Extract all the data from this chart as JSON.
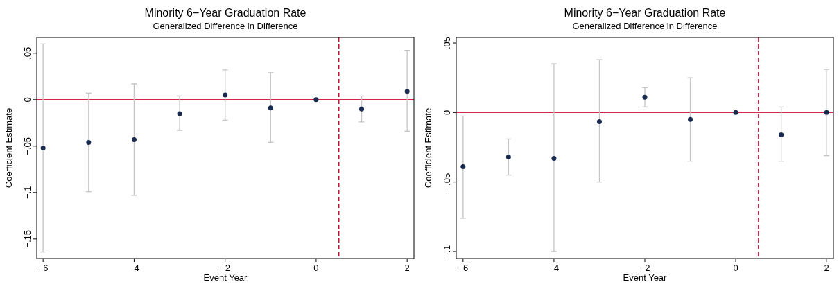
{
  "chart_data": [
    {
      "type": "scatter",
      "title": "Minority 6−Year Graduation Rate",
      "subtitle": "Generalized Difference in Difference",
      "xlabel": "Event Year",
      "ylabel": "Coefficient Estimate",
      "x": [
        -6,
        -5,
        -4,
        -3,
        -2,
        -1,
        0,
        1,
        2
      ],
      "series": [
        {
          "color": "#1a2a4f",
          "values": [
            -0.052,
            -0.046,
            -0.043,
            -0.015,
            0.005,
            -0.009,
            0,
            -0.01,
            0.009
          ],
          "errors": [
            [
              -0.164,
              0.06
            ],
            [
              -0.099,
              0.007
            ],
            [
              -0.103,
              0.017
            ],
            [
              -0.033,
              0.004
            ],
            [
              -0.022,
              0.032
            ],
            [
              -0.046,
              0.029
            ],
            null,
            [
              -0.024,
              0.004
            ],
            [
              -0.034,
              0.053
            ]
          ]
        }
      ],
      "marker": "circle",
      "xlim": [
        -6.14,
        2.15
      ],
      "ylim": [
        -0.171,
        0.067
      ],
      "xticks": [
        {
          "value": -6,
          "label": "−6"
        },
        {
          "value": -4,
          "label": "−4"
        },
        {
          "value": -2,
          "label": "−2"
        },
        {
          "value": 0,
          "label": "0"
        },
        {
          "value": 2,
          "label": "2"
        }
      ],
      "yticks": [
        {
          "value": -0.15,
          "label": "−.15"
        },
        {
          "value": -0.1,
          "label": "−.1"
        },
        {
          "value": -0.05,
          "label": "−.05"
        },
        {
          "value": 0,
          "label": "0"
        },
        {
          "value": 0.05,
          "label": ".05"
        }
      ],
      "grid": false,
      "ref_lines": [
        {
          "axis": "y",
          "value": 0,
          "color": "#d6244f",
          "line_style": "solid"
        },
        {
          "axis": "x",
          "value": 0.5,
          "color": "#c8102e",
          "line_style": "dashed"
        }
      ]
    },
    {
      "type": "scatter",
      "title": "Minority 6−Year Graduation Rate",
      "subtitle": "Generalized Difference in Difference",
      "xlabel": "Event Year",
      "ylabel": "Coefficient Estimate",
      "x": [
        -6,
        -5,
        -4,
        -3,
        -2,
        -1,
        0,
        1,
        2
      ],
      "series": [
        {
          "color": "#1a2a4f",
          "values": [
            -0.039,
            -0.032,
            -0.033,
            -0.0065,
            0.011,
            -0.005,
            0,
            -0.016,
            0
          ],
          "errors": [
            [
              -0.076,
              -0.0025
            ],
            [
              -0.045,
              -0.019
            ],
            [
              -0.1,
              0.035
            ],
            [
              -0.05,
              0.038
            ],
            [
              0.004,
              0.018
            ],
            [
              -0.035,
              0.025
            ],
            null,
            [
              -0.035,
              0.004
            ],
            [
              -0.031,
              0.031
            ]
          ]
        }
      ],
      "marker": "circle",
      "xlim": [
        -6.15,
        2.15
      ],
      "ylim": [
        -0.105,
        0.054
      ],
      "xticks": [
        {
          "value": -6,
          "label": "−6"
        },
        {
          "value": -4,
          "label": "−4"
        },
        {
          "value": -2,
          "label": "−2"
        },
        {
          "value": 0,
          "label": "0"
        },
        {
          "value": 2,
          "label": "2"
        }
      ],
      "yticks": [
        {
          "value": -0.1,
          "label": "−.1"
        },
        {
          "value": -0.05,
          "label": "−.05"
        },
        {
          "value": 0,
          "label": "0"
        },
        {
          "value": 0.05,
          "label": ".05"
        }
      ],
      "grid": false,
      "ref_lines": [
        {
          "axis": "y",
          "value": 0,
          "color": "#d6244f",
          "line_style": "solid"
        },
        {
          "axis": "x",
          "value": 0.5,
          "color": "#c8102e",
          "line_style": "dashed"
        }
      ]
    }
  ]
}
